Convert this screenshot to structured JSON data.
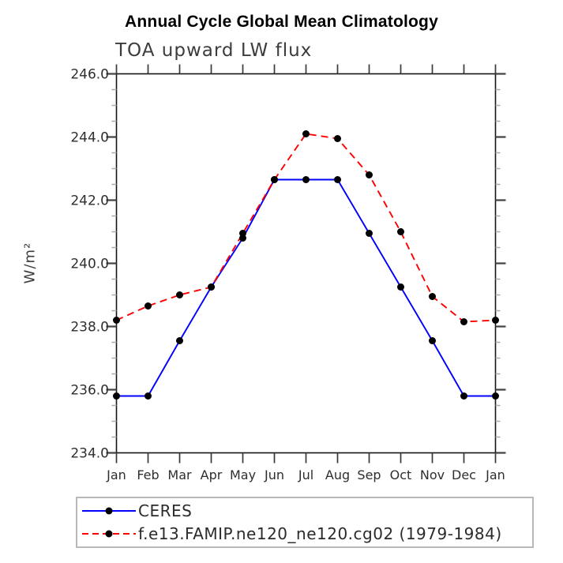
{
  "chart_data": {
    "type": "line",
    "title": "Annual Cycle Global Mean Climatology",
    "subtitle": "TOA upward LW flux",
    "xlabel": "",
    "ylabel": "W/m²",
    "ylim": [
      234.0,
      246.0
    ],
    "ytick_major_interval": 2.0,
    "ytick_minor_interval": 0.5,
    "ytick_labels": [
      "234.0",
      "236.0",
      "238.0",
      "240.0",
      "242.0",
      "244.0",
      "246.0"
    ],
    "categories": [
      "Jan",
      "Feb",
      "Mar",
      "Apr",
      "May",
      "Jun",
      "Jul",
      "Aug",
      "Sep",
      "Oct",
      "Nov",
      "Dec",
      "Jan"
    ],
    "grid": false,
    "legend_position": "below-plot-left",
    "series": [
      {
        "name": "CERES",
        "line_color": "#0000ff",
        "line_style": "solid",
        "marker": "filled-circle",
        "marker_color": "#000000",
        "values": [
          235.8,
          235.8,
          237.55,
          239.25,
          240.8,
          242.65,
          242.65,
          242.65,
          240.95,
          239.25,
          237.55,
          235.8,
          235.8
        ]
      },
      {
        "name": "f.e13.FAMIP.ne120_ne120.cg02 (1979-1984)",
        "line_color": "#ff0000",
        "line_style": "dashed",
        "marker": "filled-circle",
        "marker_color": "#000000",
        "values": [
          238.2,
          238.65,
          239.0,
          239.25,
          240.95,
          242.65,
          244.1,
          243.95,
          242.8,
          241.0,
          238.95,
          238.15,
          238.2
        ]
      }
    ]
  }
}
